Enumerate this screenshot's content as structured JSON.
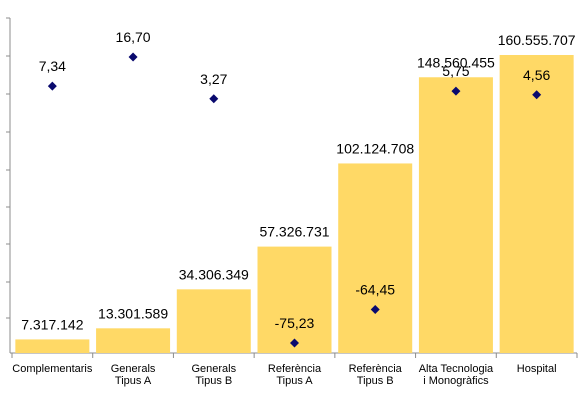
{
  "chart_data": {
    "type": "bar",
    "categories": [
      [
        "Complementaris"
      ],
      [
        "Generals",
        "Tipus A"
      ],
      [
        "Generals",
        "Tipus B"
      ],
      [
        "Referència",
        "Tipus A"
      ],
      [
        "Referència",
        "Tipus B"
      ],
      [
        "Alta Tecnologia",
        "i Monogràfics"
      ],
      [
        "Hospital"
      ]
    ],
    "bar_series": {
      "values": [
        7317142,
        13301589,
        34306349,
        57326731,
        102124708,
        148560455,
        160555707
      ],
      "labels": [
        "7.317.142",
        "13.301.589",
        "34.306.349",
        "57.326.731",
        "102.124.708",
        "148.560.455",
        "160.555.707"
      ]
    },
    "point_series": {
      "values": [
        7.34,
        16.7,
        3.27,
        -75.23,
        -64.45,
        5.75,
        4.56
      ],
      "labels": [
        "7,34",
        "16,70",
        "3,27",
        "-75,23",
        "-64,45",
        "5,75",
        "4,56"
      ]
    },
    "bar_ylim": [
      0,
      160555707
    ],
    "point_ylim": [
      -100,
      45
    ],
    "grid": false,
    "colors": {
      "bar": "#FFD966",
      "point": "#0a0a6e",
      "axis": "#8c8c8c"
    }
  }
}
